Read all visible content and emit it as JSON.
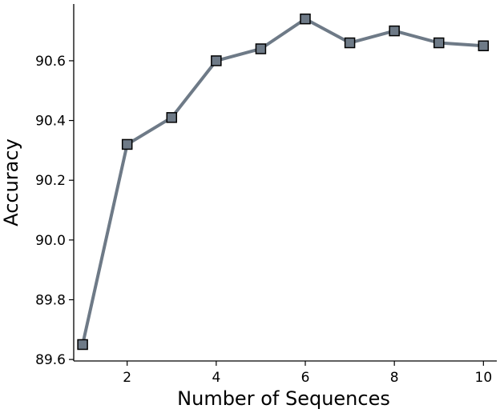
{
  "chart_data": {
    "type": "line",
    "title": "",
    "xlabel": "Number of Sequences",
    "ylabel": "Accuracy",
    "x": [
      1,
      2,
      3,
      4,
      5,
      6,
      7,
      8,
      9,
      10
    ],
    "series": [
      {
        "values": [
          89.65,
          90.32,
          90.41,
          90.6,
          90.64,
          90.74,
          90.66,
          90.7,
          90.66,
          90.65
        ],
        "color": "#6e7a87",
        "marker": "square",
        "marker_edge_color": "#000000"
      }
    ],
    "xticks": [
      2,
      4,
      6,
      8,
      10
    ],
    "xtick_labels": [
      "2",
      "4",
      "6",
      "8",
      "10"
    ],
    "yticks": [
      89.6,
      89.8,
      90.0,
      90.2,
      90.4,
      90.6
    ],
    "ytick_labels": [
      "89.6",
      "89.8",
      "90.0",
      "90.2",
      "90.4",
      "90.6"
    ],
    "xlim": [
      0.8,
      10.3
    ],
    "ylim": [
      89.595,
      90.79
    ],
    "grid": false,
    "legend": "none",
    "spines": [
      "left",
      "bottom"
    ]
  }
}
